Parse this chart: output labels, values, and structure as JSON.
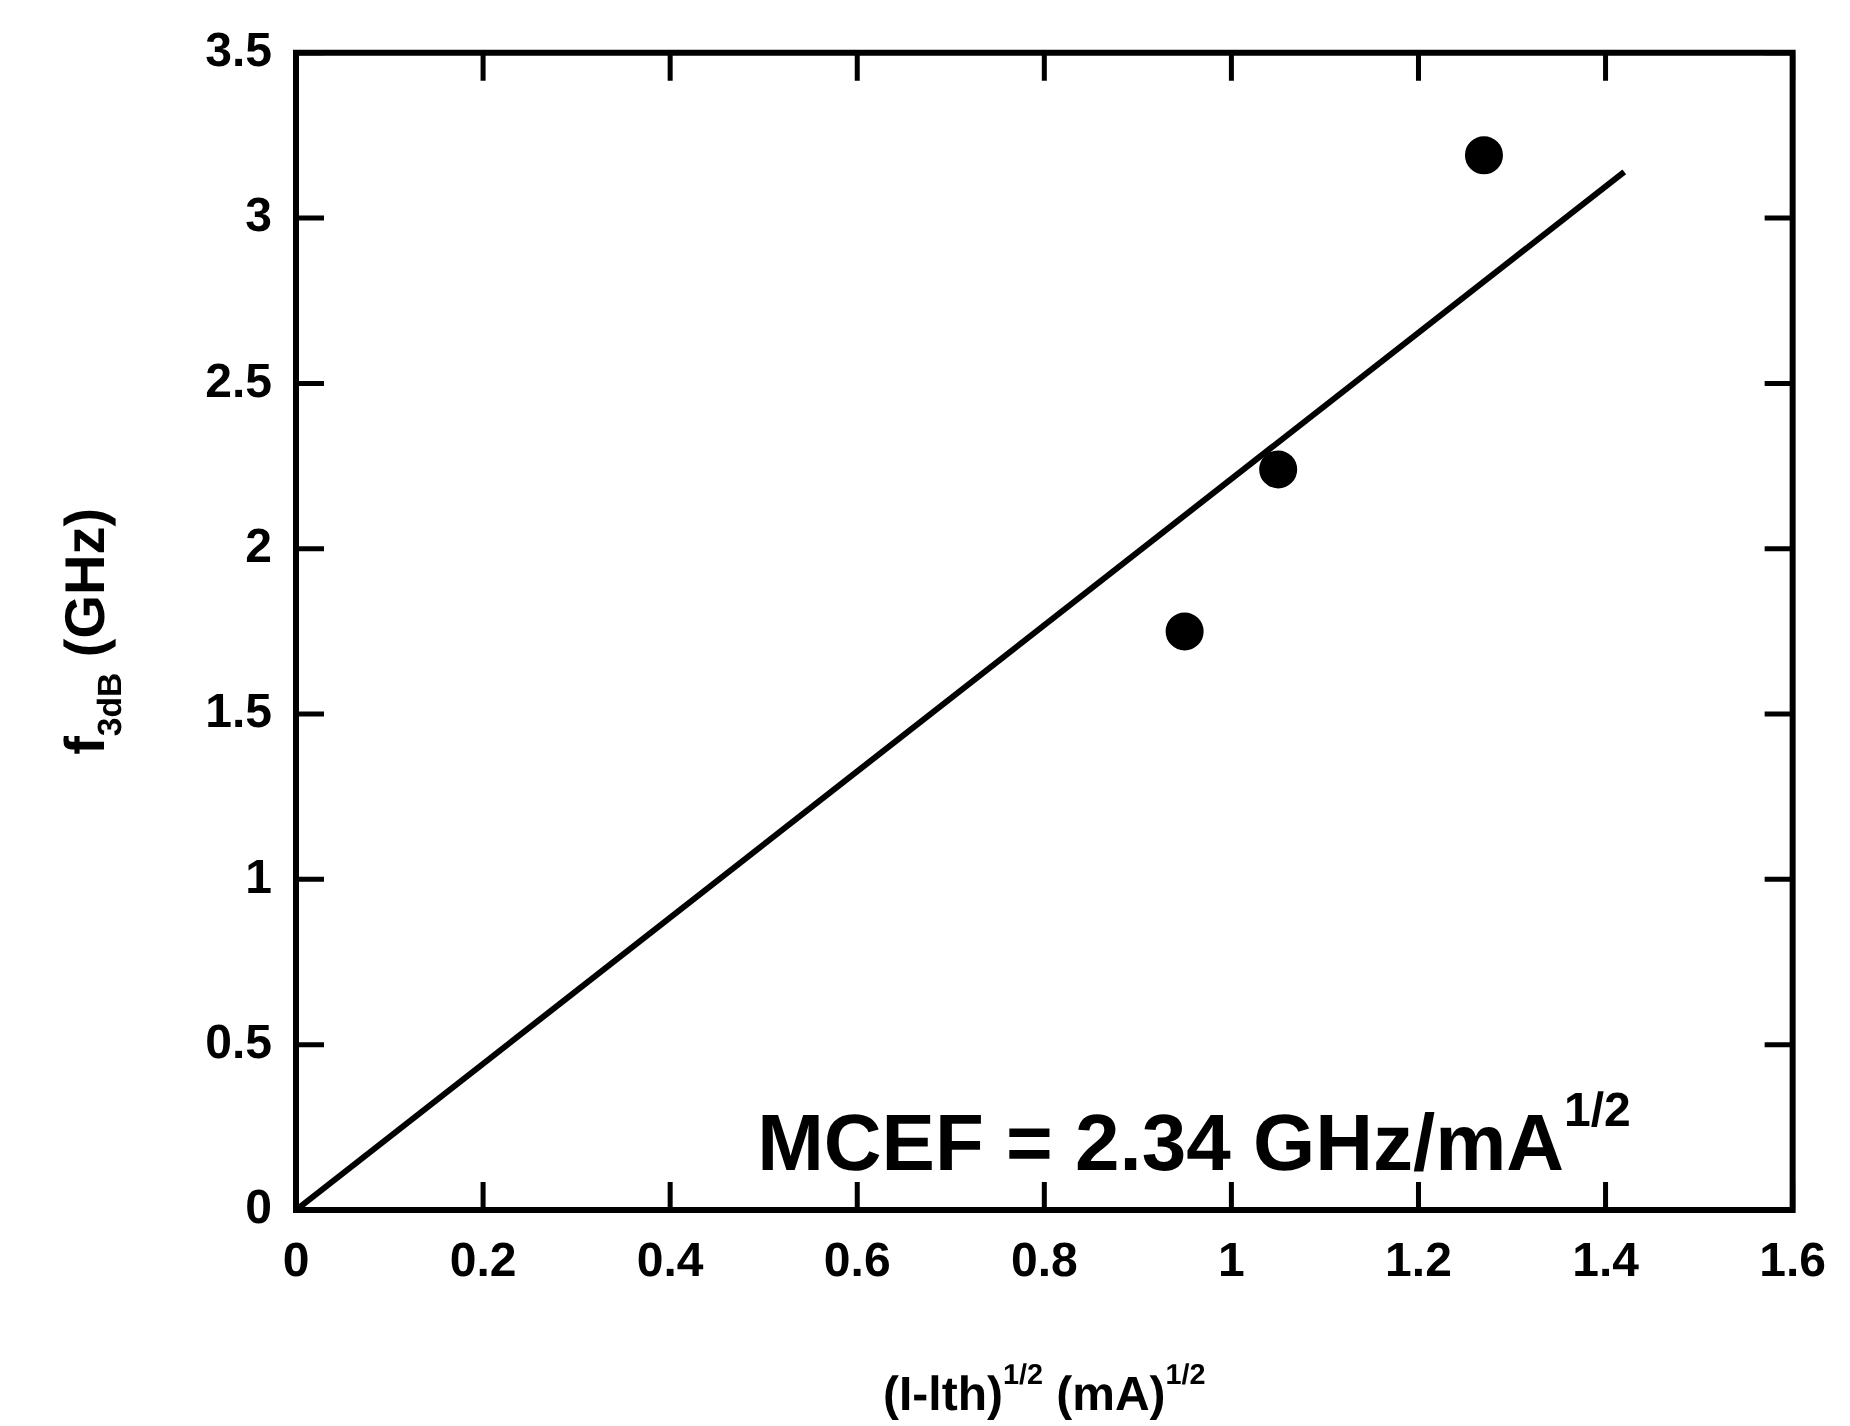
{
  "chart_data": {
    "type": "scatter",
    "xlabel": "(I-lth)$^{1/2}$ (mA)$^{1/2}$",
    "ylabel": "f$_{3dB}$ (GHz)",
    "annotations": [
      "MCEF = 2.34 GHz/mA$^{1/2}$"
    ],
    "xlim": [
      0,
      1.6
    ],
    "xticks": [
      0,
      0.2,
      0.4,
      0.6,
      0.8,
      1,
      1.2,
      1.4,
      1.6
    ],
    "ylim": [
      0,
      3.5
    ],
    "yticks": [
      0,
      0.5,
      1,
      1.5,
      2,
      2.5,
      3,
      3.5
    ],
    "series": [
      {
        "color": "#000000",
        "x": [
          0.95,
          1.05,
          1.27
        ],
        "values": [
          1.75,
          2.24,
          3.19
        ],
        "marker": "circle"
      },
      {
        "type": "line",
        "color": "#000000",
        "x": [
          0,
          1.42
        ],
        "values": [
          0,
          3.14
        ],
        "marker": "none"
      }
    ],
    "grid": false,
    "legend": false
  }
}
